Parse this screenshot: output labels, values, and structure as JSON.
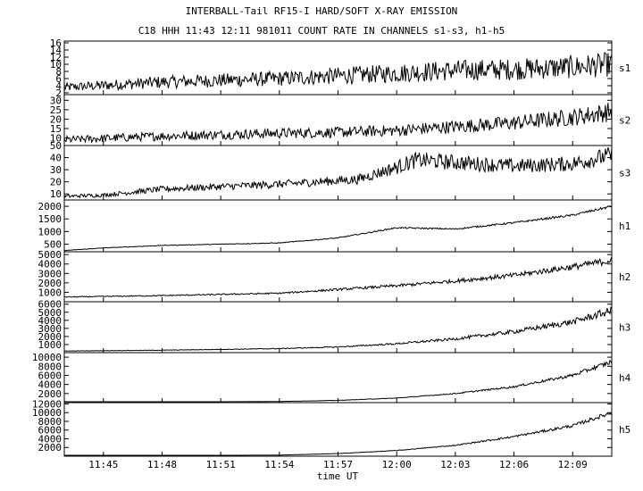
{
  "chart_data": {
    "type": "line",
    "title": "INTERBALL-Tail RF15-I HARD/SOFT X-RAY EMISSION",
    "subtitle": "C18 HHH 11:43 12:11 981011  COUNT RATE IN CHANNELS s1-s3, h1-h5",
    "xlabel": "time UT",
    "x_ticks": [
      "11:45",
      "11:48",
      "11:51",
      "11:54",
      "11:57",
      "12:00",
      "12:03",
      "12:06",
      "12:09"
    ],
    "x_start": "11:43",
    "x_end": "12:11",
    "grid": false,
    "panels": [
      {
        "name": "s1",
        "yticks": [
          2,
          4,
          6,
          8,
          10,
          12,
          14,
          16
        ],
        "ylim": [
          1.5,
          16.5
        ],
        "x": [
          "11:43",
          "11:48",
          "11:54",
          "11:57",
          "12:00",
          "12:03",
          "12:06",
          "12:09",
          "12:11"
        ],
        "values": [
          3.5,
          5,
          6,
          6.8,
          7.5,
          8.3,
          8.6,
          9.2,
          10
        ]
      },
      {
        "name": "s2",
        "yticks": [
          10,
          15,
          20,
          25,
          30
        ],
        "ylim": [
          6,
          33
        ],
        "x": [
          "11:43",
          "11:48",
          "11:54",
          "11:57",
          "12:00",
          "12:03",
          "12:06",
          "12:09",
          "12:11"
        ],
        "values": [
          9,
          11,
          12.5,
          13,
          14,
          16,
          18,
          21,
          24
        ]
      },
      {
        "name": "s3",
        "yticks": [
          10,
          20,
          30,
          40,
          50
        ],
        "ylim": [
          5,
          50
        ],
        "x": [
          "11:43",
          "11:45",
          "11:48",
          "11:54",
          "11:58",
          "12:00",
          "12:01",
          "12:03",
          "12:06",
          "12:09",
          "12:11"
        ],
        "values": [
          8,
          9,
          14,
          18,
          22,
          32,
          38,
          36,
          33,
          35,
          42
        ]
      },
      {
        "name": "h1",
        "yticks": [
          500,
          1000,
          1500,
          2000
        ],
        "ylim": [
          200,
          2250
        ],
        "x": [
          "11:43",
          "11:45",
          "11:48",
          "11:54",
          "11:57",
          "12:00",
          "12:03",
          "12:06",
          "12:09",
          "12:11"
        ],
        "values": [
          250,
          350,
          450,
          550,
          750,
          1150,
          1100,
          1350,
          1650,
          2000
        ]
      },
      {
        "name": "h2",
        "yticks": [
          1000,
          2000,
          3000,
          4000,
          5000
        ],
        "ylim": [
          0,
          5300
        ],
        "x": [
          "11:43",
          "11:48",
          "11:54",
          "11:57",
          "12:00",
          "12:03",
          "12:06",
          "12:09",
          "12:11"
        ],
        "values": [
          500,
          650,
          900,
          1300,
          1700,
          2200,
          2800,
          3700,
          4400
        ]
      },
      {
        "name": "h3",
        "yticks": [
          1000,
          2000,
          3000,
          4000,
          5000,
          6000
        ],
        "ylim": [
          0,
          6300
        ],
        "x": [
          "11:43",
          "11:48",
          "11:54",
          "11:57",
          "12:00",
          "12:03",
          "12:06",
          "12:09",
          "12:11"
        ],
        "values": [
          200,
          300,
          500,
          700,
          1100,
          1700,
          2600,
          3800,
          5200
        ]
      },
      {
        "name": "h4",
        "yticks": [
          2000,
          4000,
          6000,
          8000,
          10000
        ],
        "ylim": [
          0,
          11000
        ],
        "x": [
          "11:43",
          "11:48",
          "11:54",
          "11:57",
          "12:00",
          "12:03",
          "12:06",
          "12:09",
          "12:11"
        ],
        "values": [
          100,
          150,
          250,
          500,
          1000,
          2000,
          3500,
          6000,
          9000
        ]
      },
      {
        "name": "h5",
        "yticks": [
          2000,
          4000,
          6000,
          8000,
          10000,
          12000
        ],
        "ylim": [
          0,
          12300
        ],
        "x": [
          "11:43",
          "11:48",
          "11:54",
          "11:57",
          "12:00",
          "12:03",
          "12:06",
          "12:09",
          "12:11"
        ],
        "values": [
          100,
          150,
          250,
          600,
          1300,
          2500,
          4500,
          7000,
          10000
        ]
      }
    ]
  }
}
